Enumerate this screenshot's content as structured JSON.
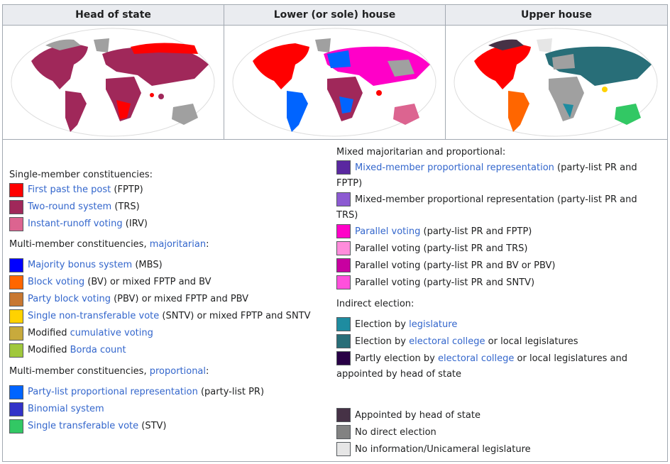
{
  "headers": [
    "Head of state",
    "Lower (or sole) house",
    "Upper house"
  ],
  "colors": {
    "fptp": "#ff0000",
    "trs": "#a0285a",
    "irv": "#dc6490",
    "mbs": "#0000ff",
    "bv": "#ff6600",
    "pbv": "#c87832",
    "sntv": "#ffd200",
    "cumulative": "#c8aa3c",
    "borda": "#a0c83c",
    "party_list": "#0064ff",
    "binomial": "#3232c8",
    "stv": "#32c864",
    "mmp_fptp": "#5a28a0",
    "mmp_trs": "#8c5ad2",
    "par_fptp": "#ff00c8",
    "par_trs": "#ff8cdc",
    "par_bv": "#c800a0",
    "par_sntv": "#ff50dc",
    "legislature": "#1e8ca0",
    "electoral_college": "#286e78",
    "partly": "#280046",
    "appointed": "#463246",
    "no_direct": "#828282",
    "no_info": "#e6e6e6",
    "ocean": "#ffffff",
    "land_gray": "#a0a0a0"
  },
  "legend": {
    "single_member": {
      "title": "Single-member constituencies:",
      "items": [
        {
          "link": "First past the post",
          "rest": " (FPTP)"
        },
        {
          "link": "Two-round system",
          "rest": " (TRS)"
        },
        {
          "link": "Instant-runoff voting",
          "rest": " (IRV)"
        }
      ]
    },
    "multi_major": {
      "title_pre": "Multi-member constituencies, ",
      "title_link": "majoritarian",
      "title_post": ":",
      "items": [
        {
          "pre": "",
          "link": "Majority bonus system",
          "rest": " (MBS)"
        },
        {
          "pre": "",
          "link": "Block voting",
          "rest": " (BV) or mixed FPTP and BV"
        },
        {
          "pre": "",
          "link": "Party block voting",
          "rest": " (PBV) or mixed FPTP and PBV"
        },
        {
          "pre": "",
          "link": "Single non-transferable vote",
          "rest": " (SNTV) or mixed FPTP and SNTV"
        },
        {
          "pre": "Modified ",
          "link": "cumulative voting",
          "rest": ""
        },
        {
          "pre": "Modified ",
          "link": "Borda count",
          "rest": ""
        }
      ]
    },
    "multi_prop": {
      "title_pre": "Multi-member constituencies, ",
      "title_link": "proportional",
      "title_post": ":",
      "items": [
        {
          "link": "Party-list proportional representation",
          "rest": " (party-list PR)"
        },
        {
          "link": "Binomial system",
          "rest": ""
        },
        {
          "link": "Single transferable vote",
          "rest": " (STV)"
        }
      ]
    },
    "mixed": {
      "title": "Mixed majoritarian and proportional:",
      "items": [
        {
          "line1_link": "Mixed-member proportional representation",
          "line1_rest": " (party-list PR and",
          "line2": "FPTP)"
        },
        {
          "line1_link": "",
          "line1_rest": "Mixed-member proportional representation (party-list PR and",
          "line2": "TRS)"
        },
        {
          "line1_link": "Parallel voting",
          "line1_rest": " (party-list PR and FPTP)",
          "line2": ""
        },
        {
          "line1_link": "",
          "line1_rest": "Parallel voting (party-list PR and TRS)",
          "line2": ""
        },
        {
          "line1_link": "",
          "line1_rest": "Parallel voting (party-list PR and BV or PBV)",
          "line2": ""
        },
        {
          "line1_link": "",
          "line1_rest": "Parallel voting (party-list PR and SNTV)",
          "line2": ""
        }
      ]
    },
    "indirect": {
      "title": "Indirect election:",
      "items": [
        {
          "pre": "Election by ",
          "link": "legislature",
          "rest": "",
          "line2": ""
        },
        {
          "pre": "Election by ",
          "link": "electoral college",
          "rest": " or local legislatures",
          "line2": ""
        },
        {
          "pre": "Partly election by ",
          "link": "electoral college",
          "rest": " or local legislatures and",
          "line2": "appointed by head of state"
        }
      ]
    },
    "other": {
      "items": [
        {
          "text": "Appointed by head of state"
        },
        {
          "text": "No direct election"
        },
        {
          "text": "No information/Unicameral legislature"
        }
      ]
    }
  }
}
